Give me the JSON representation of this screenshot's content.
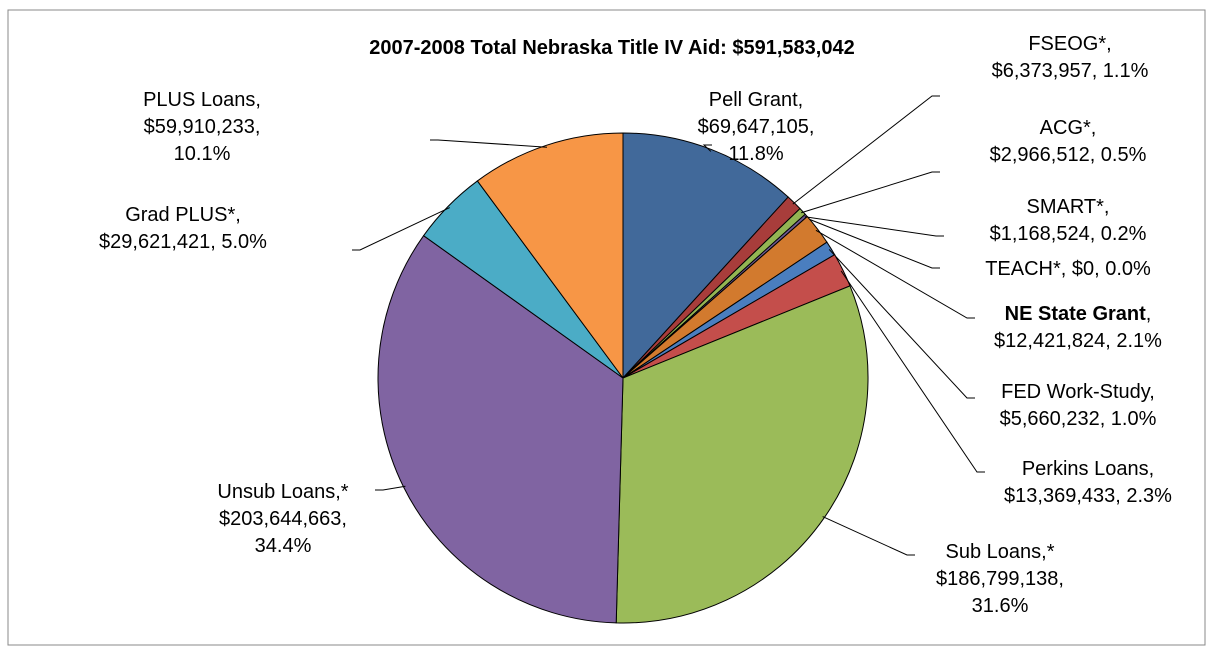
{
  "chart_data": {
    "type": "pie",
    "title": "2007-2008 Total Nebraska Title IV Aid:  $591,583,042",
    "values": [
      69647105,
      6373957,
      2966512,
      1168524,
      0,
      12421824,
      5660232,
      13369433,
      186799138,
      203644663,
      29621421,
      59910233
    ],
    "value_labels": [
      [
        "Pell Grant,",
        "$69,647,105,",
        "11.8%"
      ],
      [
        "FSEOG*,",
        "$6,373,957, 1.1%"
      ],
      [
        "ACG*,",
        "$2,966,512, 0.5%"
      ],
      [
        "SMART*,",
        "$1,168,524, 0.2%"
      ],
      [
        "TEACH*, $0, 0.0%"
      ],
      [
        [
          "NE State Grant",
          ","
        ],
        "$12,421,824, 2.1%"
      ],
      [
        "FED Work-Study,",
        "$5,660,232, 1.0%"
      ],
      [
        "Perkins Loans,",
        "$13,369,433, 2.3%"
      ],
      [
        "Sub Loans,*",
        "$186,799,138,",
        "31.6%"
      ],
      [
        "Unsub Loans,*",
        "$203,644,663,",
        "34.4%"
      ],
      [
        "Grad PLUS*,",
        "$29,621,421, 5.0%"
      ],
      [
        "PLUS Loans,",
        "$59,910,233,",
        "10.1%"
      ]
    ],
    "colors": [
      "#41699a",
      "#a83d3b",
      "#93b553",
      "#6f5a93",
      "#3a9ab3",
      "#d27a2e",
      "#4a7ebf",
      "#c44e4b",
      "#9bbb59",
      "#8064a2",
      "#4bacc6",
      "#f79646"
    ]
  }
}
